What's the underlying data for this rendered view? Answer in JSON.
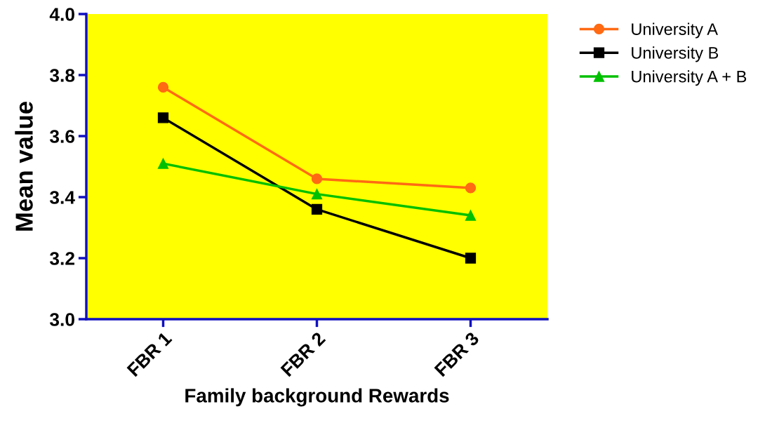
{
  "chart_data": {
    "type": "line",
    "xlabel": "Family background Rewards",
    "ylabel": "Mean value",
    "categories": [
      "FBR 1",
      "FBR 2",
      "FBR 3"
    ],
    "series": [
      {
        "name": "University A",
        "color": "#ff6a13",
        "marker": "circle",
        "values": [
          3.76,
          3.46,
          3.43
        ]
      },
      {
        "name": "University B",
        "color": "#000000",
        "marker": "square",
        "values": [
          3.66,
          3.36,
          3.2
        ]
      },
      {
        "name": "University A + B",
        "color": "#00c000",
        "marker": "triangle",
        "values": [
          3.51,
          3.41,
          3.34
        ]
      }
    ],
    "ylim": [
      3.0,
      4.0
    ],
    "yticks": [
      {
        "value": 3.0,
        "label": "3.0"
      },
      {
        "value": 3.2,
        "label": "3.2"
      },
      {
        "value": 3.4,
        "label": "3.4"
      },
      {
        "value": 3.6,
        "label": "3.6"
      },
      {
        "value": 3.8,
        "label": "3.8"
      },
      {
        "value": 4.0,
        "label": "4.0"
      }
    ],
    "grid": false,
    "legend": "top right",
    "line_style": "solid"
  }
}
